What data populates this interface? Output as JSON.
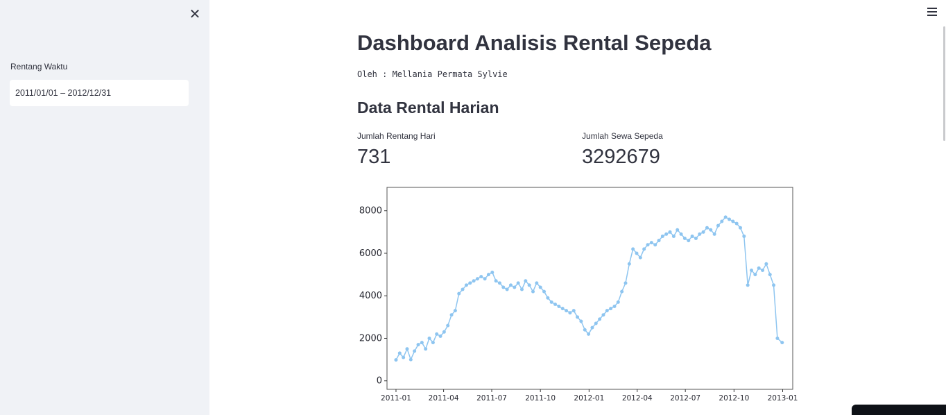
{
  "sidebar": {
    "close_icon": "close-icon",
    "date_range_label": "Rentang Waktu",
    "date_range_value": "2011/01/01 – 2012/12/31"
  },
  "header": {
    "menu_icon": "hamburger-menu-icon"
  },
  "main": {
    "title": "Dashboard Analisis Rental Sepeda",
    "author": "Oleh : Mellania Permata Sylvie",
    "section_title": "Data Rental Harian",
    "metrics": [
      {
        "label": "Jumlah Rentang Hari",
        "value": "731"
      },
      {
        "label": "Jumlah Sewa Sepeda",
        "value": "3292679"
      }
    ]
  },
  "chart_data": {
    "type": "line",
    "title": "",
    "xlabel": "",
    "ylabel": "",
    "x_ticks": [
      "2011-01",
      "2011-04",
      "2011-07",
      "2011-10",
      "2012-01",
      "2012-04",
      "2012-07",
      "2012-10",
      "2013-01"
    ],
    "y_ticks": [
      0,
      2000,
      4000,
      6000,
      8000
    ],
    "xlim": [
      "2010-12-15",
      "2013-01-20"
    ],
    "ylim": [
      -400,
      9100
    ],
    "grid": false,
    "color": "#8ec5f0",
    "series": [
      {
        "values": [
          [
            "2011-01-01",
            985
          ],
          [
            "2011-01-08",
            1300
          ],
          [
            "2011-01-15",
            1100
          ],
          [
            "2011-01-22",
            1500
          ],
          [
            "2011-01-29",
            1000
          ],
          [
            "2011-02-05",
            1400
          ],
          [
            "2011-02-12",
            1700
          ],
          [
            "2011-02-19",
            1800
          ],
          [
            "2011-02-26",
            1500
          ],
          [
            "2011-03-05",
            2000
          ],
          [
            "2011-03-12",
            1800
          ],
          [
            "2011-03-19",
            2200
          ],
          [
            "2011-03-26",
            2100
          ],
          [
            "2011-04-02",
            2300
          ],
          [
            "2011-04-09",
            2600
          ],
          [
            "2011-04-16",
            3100
          ],
          [
            "2011-04-23",
            3300
          ],
          [
            "2011-04-30",
            4100
          ],
          [
            "2011-05-07",
            4300
          ],
          [
            "2011-05-14",
            4500
          ],
          [
            "2011-05-21",
            4600
          ],
          [
            "2011-05-28",
            4700
          ],
          [
            "2011-06-04",
            4800
          ],
          [
            "2011-06-11",
            4900
          ],
          [
            "2011-06-18",
            4800
          ],
          [
            "2011-06-25",
            5000
          ],
          [
            "2011-07-02",
            5100
          ],
          [
            "2011-07-09",
            4700
          ],
          [
            "2011-07-16",
            4600
          ],
          [
            "2011-07-23",
            4400
          ],
          [
            "2011-07-30",
            4300
          ],
          [
            "2011-08-06",
            4500
          ],
          [
            "2011-08-13",
            4400
          ],
          [
            "2011-08-20",
            4600
          ],
          [
            "2011-08-27",
            4300
          ],
          [
            "2011-09-03",
            4700
          ],
          [
            "2011-09-10",
            4500
          ],
          [
            "2011-09-17",
            4200
          ],
          [
            "2011-09-24",
            4600
          ],
          [
            "2011-10-01",
            4400
          ],
          [
            "2011-10-08",
            4200
          ],
          [
            "2011-10-15",
            3900
          ],
          [
            "2011-10-22",
            3700
          ],
          [
            "2011-10-29",
            3600
          ],
          [
            "2011-11-05",
            3500
          ],
          [
            "2011-11-12",
            3400
          ],
          [
            "2011-11-19",
            3300
          ],
          [
            "2011-11-26",
            3200
          ],
          [
            "2011-12-03",
            3300
          ],
          [
            "2011-12-10",
            3000
          ],
          [
            "2011-12-17",
            2800
          ],
          [
            "2011-12-24",
            2400
          ],
          [
            "2011-12-31",
            2200
          ],
          [
            "2012-01-07",
            2500
          ],
          [
            "2012-01-14",
            2700
          ],
          [
            "2012-01-21",
            2900
          ],
          [
            "2012-01-28",
            3100
          ],
          [
            "2012-02-04",
            3300
          ],
          [
            "2012-02-11",
            3400
          ],
          [
            "2012-02-18",
            3500
          ],
          [
            "2012-02-25",
            3700
          ],
          [
            "2012-03-03",
            4200
          ],
          [
            "2012-03-10",
            4600
          ],
          [
            "2012-03-17",
            5500
          ],
          [
            "2012-03-24",
            6200
          ],
          [
            "2012-03-31",
            6000
          ],
          [
            "2012-04-07",
            5800
          ],
          [
            "2012-04-14",
            6200
          ],
          [
            "2012-04-21",
            6400
          ],
          [
            "2012-04-28",
            6500
          ],
          [
            "2012-05-05",
            6400
          ],
          [
            "2012-05-12",
            6600
          ],
          [
            "2012-05-19",
            6800
          ],
          [
            "2012-05-26",
            6900
          ],
          [
            "2012-06-02",
            7000
          ],
          [
            "2012-06-09",
            6800
          ],
          [
            "2012-06-16",
            7100
          ],
          [
            "2012-06-23",
            6900
          ],
          [
            "2012-06-30",
            6700
          ],
          [
            "2012-07-07",
            6600
          ],
          [
            "2012-07-14",
            6800
          ],
          [
            "2012-07-21",
            6700
          ],
          [
            "2012-07-28",
            6900
          ],
          [
            "2012-08-04",
            7000
          ],
          [
            "2012-08-11",
            7200
          ],
          [
            "2012-08-18",
            7100
          ],
          [
            "2012-08-25",
            6900
          ],
          [
            "2012-09-01",
            7300
          ],
          [
            "2012-09-08",
            7500
          ],
          [
            "2012-09-15",
            7700
          ],
          [
            "2012-09-22",
            7600
          ],
          [
            "2012-09-29",
            7500
          ],
          [
            "2012-10-06",
            7400
          ],
          [
            "2012-10-13",
            7200
          ],
          [
            "2012-10-20",
            6800
          ],
          [
            "2012-10-27",
            4500
          ],
          [
            "2012-11-03",
            5200
          ],
          [
            "2012-11-10",
            5000
          ],
          [
            "2012-11-17",
            5300
          ],
          [
            "2012-11-24",
            5200
          ],
          [
            "2012-12-01",
            5500
          ],
          [
            "2012-12-08",
            5000
          ],
          [
            "2012-12-15",
            4500
          ],
          [
            "2012-12-22",
            2000
          ],
          [
            "2012-12-31",
            1800
          ]
        ]
      }
    ]
  }
}
